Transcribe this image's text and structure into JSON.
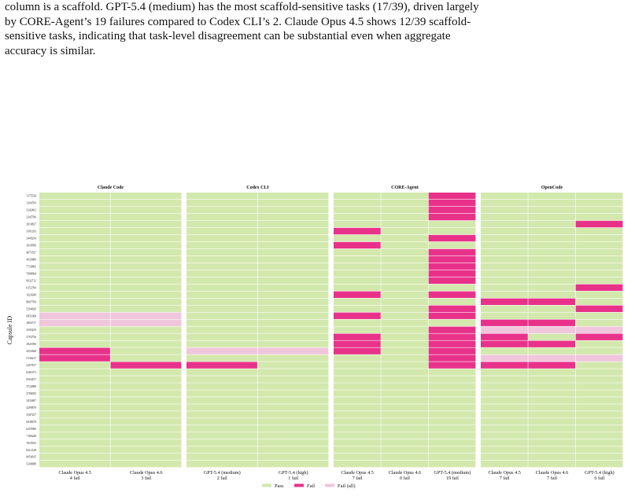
{
  "paragraph": [
    "column is a scaffold. GPT-5.4 (medium) has the most scaffold-sensitive tasks (17/39), driven largely",
    "by CORE-Agent’s 19 failures compared to Codex CLI’s 2. Claude Opus 4.5 shows 12/39 scaffold-",
    "sensitive tasks, indicating that task-level disagreement can be substantial even when aggregate",
    "accuracy is similar."
  ],
  "colors": {
    "pass": "#d3e8ad",
    "fail": "#e8328a",
    "fail_all": "#f0c6dc",
    "panel_bg": "#ffffff"
  },
  "chart_data": {
    "type": "heatmap",
    "ylabel": "Capsule ID",
    "capsule_ids": [
      "1175539",
      "1394704",
      "2242462",
      "2345790",
      "2010827",
      "3301293",
      "3449234",
      "3639589",
      "4671827",
      "4933686",
      "7716865",
      "7080694",
      "9932712",
      "0152790",
      "1624349",
      "8807709",
      "5294029",
      "0851068",
      "2804717",
      "3593259",
      "3792756",
      "3821950",
      "4252268",
      "5136217",
      "5457817",
      "0281673",
      "0504157",
      "3724988",
      "2780035",
      "3433697",
      "4299879",
      "5587257",
      "6049678",
      "6255990",
      "7186248",
      "7655932",
      "8412128",
      "9054015",
      "5240688"
    ],
    "legend": [
      "Pass",
      "Fail",
      "Fail (all)"
    ],
    "panels": [
      {
        "title": "Claude Code",
        "columns": [
          {
            "model": "Claude Opus 4.5",
            "fail_label": "4 fail",
            "fail": [
              22,
              23
            ],
            "fail_all": [
              17,
              18
            ]
          },
          {
            "model": "Claude Opus 4.6",
            "fail_label": "3 fail",
            "fail": [
              24
            ],
            "fail_all": [
              17,
              18
            ]
          }
        ]
      },
      {
        "title": "Codex CLI",
        "columns": [
          {
            "model": "GPT-5.4 (medium)",
            "fail_label": "2 fail",
            "fail": [
              24
            ],
            "fail_all": [
              22
            ]
          },
          {
            "model": "GPT-5.4 (high)",
            "fail_label": "1 fail",
            "fail": [],
            "fail_all": [
              22
            ]
          }
        ]
      },
      {
        "title": "CORE-Agent",
        "columns": [
          {
            "model": "Claude Opus 4.5",
            "fail_label": "7 fail",
            "fail": [
              5,
              7,
              14,
              17,
              20,
              21,
              22
            ],
            "fail_all": []
          },
          {
            "model": "Claude Opus 4.6",
            "fail_label": "0 fail",
            "fail": [],
            "fail_all": []
          },
          {
            "model": "GPT-5.4 (medium)",
            "fail_label": "19 fail",
            "fail": [
              0,
              1,
              2,
              3,
              6,
              8,
              9,
              10,
              11,
              12,
              14,
              16,
              17,
              19,
              20,
              21,
              22,
              23,
              24
            ],
            "fail_all": []
          }
        ]
      },
      {
        "title": "OpenCode",
        "columns": [
          {
            "model": "Claude Opus 4.5",
            "fail_label": "7 fail",
            "fail": [
              15,
              18,
              20,
              21,
              24
            ],
            "fail_all": [
              19,
              23
            ]
          },
          {
            "model": "Claude Opus 4.6",
            "fail_label": "7 fail",
            "fail": [
              15,
              18,
              21,
              24
            ],
            "fail_all": [
              19,
              23
            ]
          },
          {
            "model": "GPT-5.4 (high)",
            "fail_label": "6 fail",
            "fail": [
              4,
              13,
              16,
              20
            ],
            "fail_all": [
              19,
              23
            ]
          }
        ]
      }
    ]
  }
}
